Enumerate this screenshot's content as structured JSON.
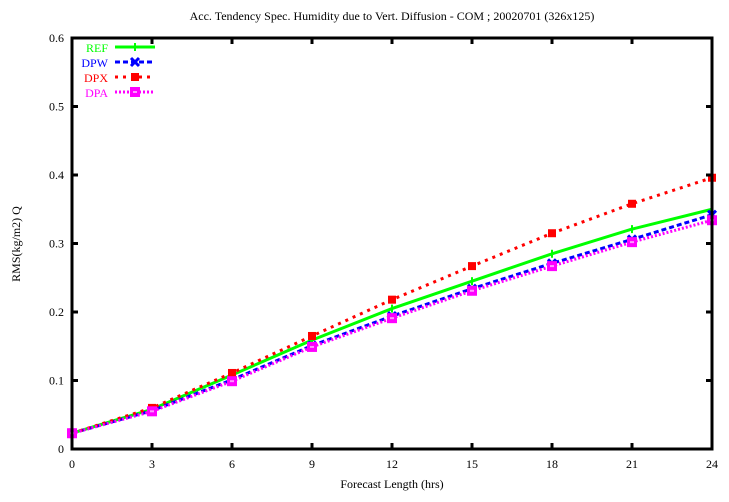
{
  "chart_data": {
    "type": "line",
    "title": "Acc. Tendency Spec. Humidity due to Vert. Diffusion - COM ; 20020701 (326x125)",
    "xlabel": "Forecast Length (hrs)",
    "ylabel": "RMS(kg/m2) Q",
    "x": [
      0,
      3,
      6,
      9,
      12,
      15,
      18,
      21,
      24
    ],
    "xticks": [
      "0",
      "3",
      "6",
      "9",
      "12",
      "15",
      "18",
      "21",
      "24"
    ],
    "yticks": [
      "0",
      "0.1",
      "0.2",
      "0.3",
      "0.4",
      "0.5",
      "0.6"
    ],
    "xlim": [
      0,
      24
    ],
    "ylim": [
      0,
      0.6
    ],
    "legend_position": "top-left",
    "series": [
      {
        "name": "REF",
        "color": "#00ff00",
        "values": [
          0.023,
          0.058,
          0.108,
          0.159,
          0.205,
          0.245,
          0.285,
          0.321,
          0.35
        ]
      },
      {
        "name": "DPW",
        "color": "#0000ff",
        "values": [
          0.023,
          0.056,
          0.101,
          0.151,
          0.194,
          0.234,
          0.271,
          0.306,
          0.342
        ]
      },
      {
        "name": "DPX",
        "color": "#ff0000",
        "values": [
          0.023,
          0.06,
          0.111,
          0.165,
          0.218,
          0.267,
          0.315,
          0.358,
          0.396
        ]
      },
      {
        "name": "DPA",
        "color": "#ff00ff",
        "values": [
          0.023,
          0.055,
          0.099,
          0.149,
          0.191,
          0.231,
          0.267,
          0.302,
          0.334
        ]
      }
    ]
  }
}
